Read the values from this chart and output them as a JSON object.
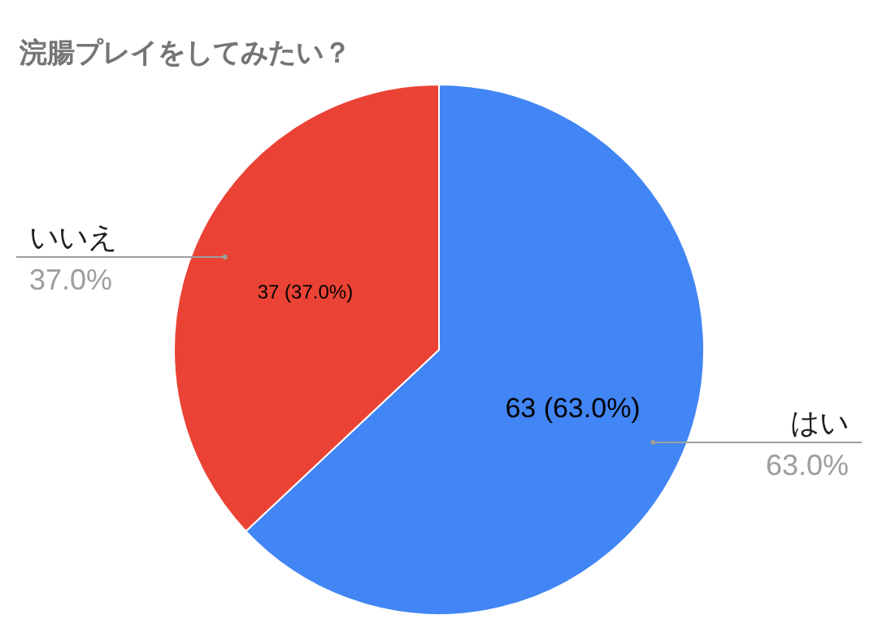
{
  "chart_data": {
    "type": "pie",
    "title": "浣腸プレイをしてみたい？",
    "categories": [
      "はい",
      "いいえ"
    ],
    "values": [
      63,
      37
    ],
    "colors": [
      "#4285f4",
      "#ea4335"
    ],
    "value_labels": [
      "63 (63.0%)",
      "37 (37.0%)"
    ],
    "annotations": [
      "63.0%",
      "37.0%"
    ]
  }
}
